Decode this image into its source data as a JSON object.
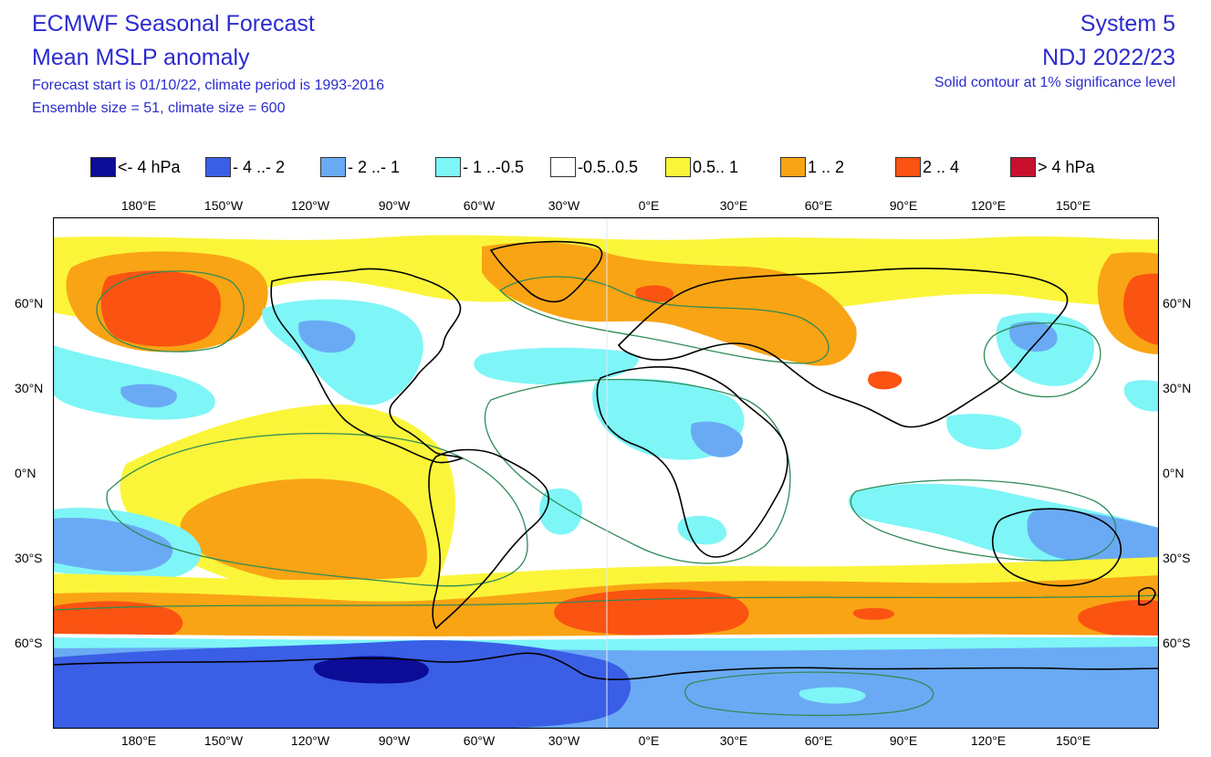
{
  "header": {
    "title_line1": "ECMWF Seasonal Forecast",
    "title_line2": "Mean MSLP anomaly",
    "subtitle_line1": "Forecast start is 01/10/22, climate period is 1993-2016",
    "subtitle_line2": "Ensemble size = 51, climate size = 600",
    "system": "System 5",
    "period": "NDJ 2022/23",
    "significance_note": "Solid contour at 1% significance level"
  },
  "legend": [
    {
      "label": "<- 4 hPa",
      "color": "#0c0c96"
    },
    {
      "label": "- 4 ..- 2",
      "color": "#3a5ee6"
    },
    {
      "label": "- 2 ..- 1",
      "color": "#6aaaf4"
    },
    {
      "label": "- 1 ..-0.5",
      "color": "#7ef5f7"
    },
    {
      "label": "-0.5..0.5",
      "color": "#ffffff"
    },
    {
      "label": "0.5.. 1",
      "color": "#fbf53a"
    },
    {
      "label": "1 .. 2",
      "color": "#f9a414"
    },
    {
      "label": "2 .. 4",
      "color": "#fb5312"
    },
    {
      "label": "> 4 hPa",
      "color": "#c8102e"
    }
  ],
  "axes": {
    "lon_ticks": [
      "180°E",
      "150°W",
      "120°W",
      "90°W",
      "60°W",
      "30°W",
      "0°E",
      "30°E",
      "60°E",
      "90°E",
      "120°E",
      "150°E"
    ],
    "lat_ticks": [
      "60°N",
      "30°N",
      "0°N",
      "30°S",
      "60°S"
    ]
  },
  "colors": {
    "text_blue": "#2b2bcf",
    "contour": "#2e8b57",
    "coastline": "#000000"
  }
}
